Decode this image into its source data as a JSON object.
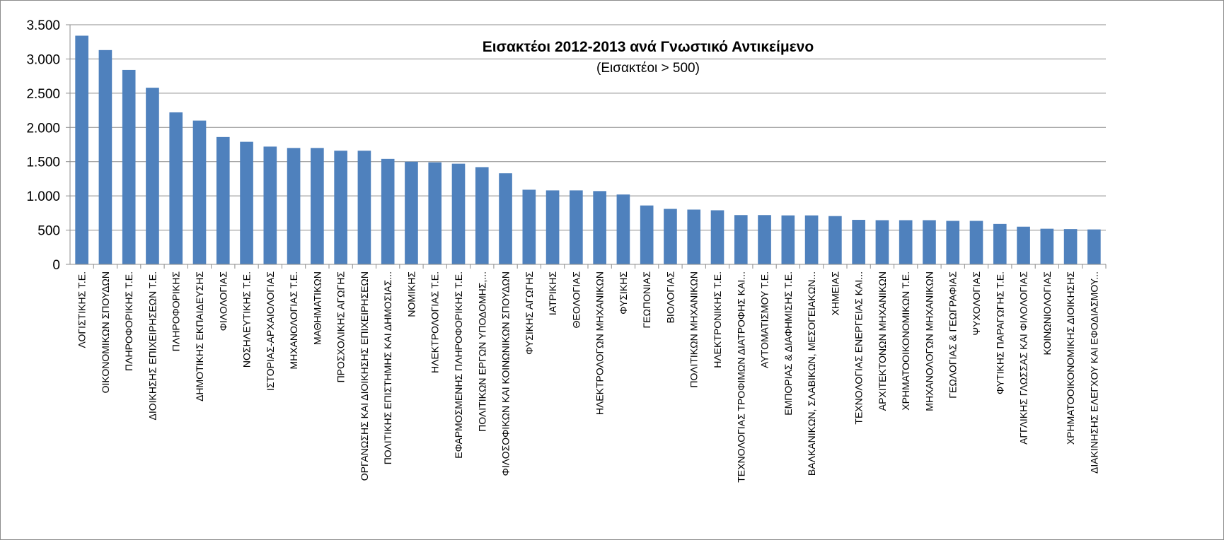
{
  "chart_data": {
    "type": "bar",
    "title": "Εισακτέοι 2012-2013 ανά Γνωστικό Αντικείμενο",
    "subtitle": "(Εισακτέοι > 500)",
    "xlabel": "",
    "ylabel": "",
    "ylim": [
      0,
      3500
    ],
    "yticks": [
      0,
      500,
      1000,
      1500,
      2000,
      2500,
      3000,
      3500
    ],
    "ytick_labels": [
      "0",
      "500",
      "1.000",
      "1.500",
      "2.000",
      "2.500",
      "3.000",
      "3.500"
    ],
    "grid": true,
    "legend": "none",
    "bar_color": "#4f81bd",
    "categories": [
      "ΛΟΓΙΣΤΙΚΗΣ Τ.Ε.",
      "ΟΙΚΟΝΟΜΙΚΩΝ ΣΠΟΥΔΩΝ",
      "ΠΛΗΡΟΦΟΡΙΚΗΣ Τ.Ε.",
      "ΔΙΟΙΚΗΣΗΣ ΕΠΙΧΕΙΡΗΣΕΩΝ Τ.Ε.",
      "ΠΛΗΡΟΦΟΡΙΚΗΣ",
      "ΔΗΜΟΤΙΚΗΣ ΕΚΠΑΙΔΕΥΣΗΣ",
      "ΦΙΛΟΛΟΓΙΑΣ",
      "ΝΟΣΗΛΕΥΤΙΚΗΣ Τ.Ε.",
      "ΙΣΤΟΡΙΑΣ-ΑΡΧΑΙΟΛΟΓΙΑΣ",
      "ΜΗΧΑΝΟΛΟΓΙΑΣ Τ.Ε.",
      "ΜΑΘΗΜΑΤΙΚΩΝ",
      "ΠΡΟΣΧΟΛΙΚΗΣ ΑΓΩΓΗΣ",
      "ΟΡΓΑΝΩΣΗΣ ΚΑΙ ΔΙΟΙΚΗΣΗΣ ΕΠΙΧΕΙΡΗΣΕΩΝ",
      "ΠΟΛΙΤΙΚΗΣ ΕΠΙΣΤΗΜΗΣ ΚΑΙ ΔΗΜΟΣΙΑΣ...",
      "ΝΟΜΙΚΗΣ",
      "ΗΛΕΚΤΡΟΛΟΓΙΑΣ Τ.Ε.",
      "ΕΦΑΡΜΟΣΜΕΝΗΣ ΠΛΗΡΟΦΟΡΙΚΗΣ Τ.Ε.",
      "ΠΟΛΙΤΙΚΩΝ ΕΡΓΩΝ ΥΠΟΔΟΜΗΣ,...",
      "ΦΙΛΟΣΟΦΙΚΩΝ ΚΑΙ ΚΟΙΝΩΝΙΚΩΝ ΣΠΟΥΔΩΝ",
      "ΦΥΣΙΚΗΣ ΑΓΩΓΗΣ",
      "ΙΑΤΡΙΚΗΣ",
      "ΘΕΟΛΟΓΙΑΣ",
      "ΗΛΕΚΤΡΟΛΟΓΩΝ ΜΗΧΑΝΙΚΩΝ",
      "ΦΥΣΙΚΗΣ",
      "ΓΕΩΠΟΝΙΑΣ",
      "ΒΙΟΛΟΓΙΑΣ",
      "ΠΟΛΙΤΙΚΩΝ ΜΗΧΑΝΙΚΩΝ",
      "ΗΛΕΚΤΡΟΝΙΚΗΣ Τ.Ε.",
      "ΤΕΧΝΟΛΟΓΙΑΣ ΤΡΟΦΙΜΩΝ ΔΙΑΤΡΟΦΗΣ ΚΑΙ...",
      "ΑΥΤΟΜΑΤΙΣΜΟΥ Τ.Ε.",
      "ΕΜΠΟΡΙΑΣ & ΔΙΑΦΗΜΙΣΗΣ Τ.Ε.",
      "ΒΑΛΚΑΝΙΚΩΝ, ΣΛΑΒΙΚΩΝ, ΜΕΣΟΓΕΙΑΚΩΝ...",
      "ΧΗΜΕΙΑΣ",
      "ΤΕΧΝΟΛΟΓΙΑΣ ΕΝΕΡΓΕΙΑΣ ΚΑΙ...",
      "ΑΡΧΙΤΕΚΤΟΝΩΝ ΜΗΧΑΝΙΚΩΝ",
      "ΧΡΗΜΑΤΟΟΙΚΟΝΟΜΙΚΩΝ Τ.Ε.",
      "ΜΗΧΑΝΟΛΟΓΩΝ ΜΗΧΑΝΙΚΩΝ",
      "ΓΕΩΛΟΓΙΑΣ & ΓΕΩΓΡΑΦΙΑΣ",
      "ΨΥΧΟΛΟΓΙΑΣ",
      "ΦΥΤΙΚΗΣ ΠΑΡΑΓΩΓΗΣ Τ.Ε.",
      "ΑΓΓΛΙΚΗΣ ΓΛΩΣΣΑΣ ΚΑΙ ΦΙΛΟΛΟΓΙΑΣ",
      "ΚΟΙΝΩΝΙΟΛΟΓΙΑΣ",
      "ΧΡΗΜΑΤΟΟΙΚΟΝΟΜΙΚΗΣ ΔΙΟΙΚΗΣΗΣ",
      "ΔΙΑΚΙΝΗΣΗΣ ΕΛΕΓΧΟΥ ΚΑΙ ΕΦΟΔΙΑΣΜΟΥ..."
    ],
    "values": [
      3340,
      3130,
      2840,
      2580,
      2220,
      2100,
      1860,
      1790,
      1720,
      1700,
      1700,
      1660,
      1660,
      1540,
      1500,
      1490,
      1470,
      1420,
      1330,
      1090,
      1080,
      1080,
      1070,
      1020,
      860,
      810,
      800,
      790,
      720,
      720,
      715,
      715,
      705,
      650,
      645,
      645,
      645,
      635,
      635,
      590,
      550,
      520,
      515,
      510
    ]
  }
}
